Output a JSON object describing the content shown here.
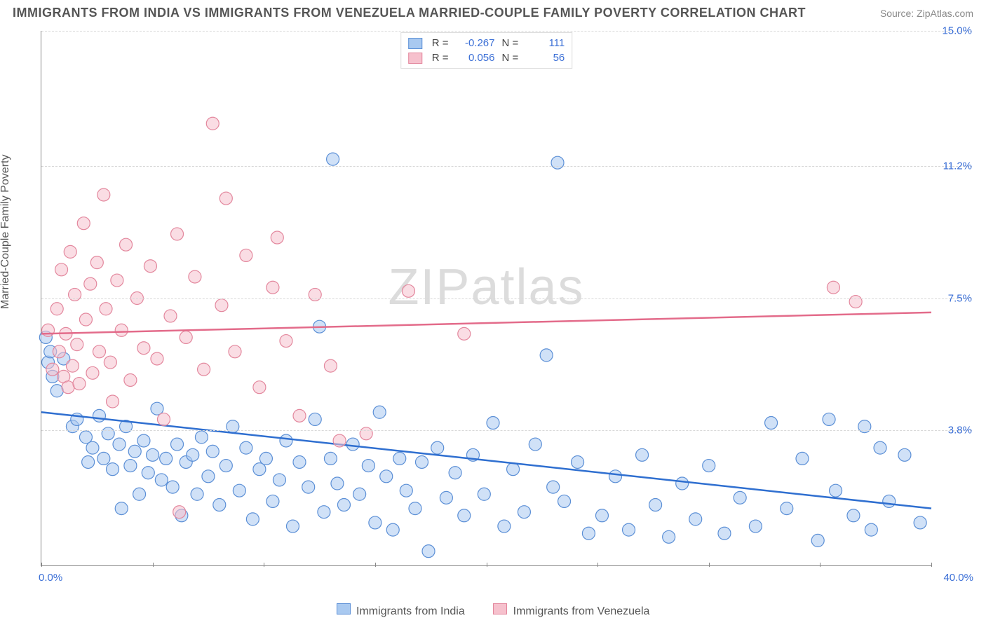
{
  "header": {
    "title": "IMMIGRANTS FROM INDIA VS IMMIGRANTS FROM VENEZUELA MARRIED-COUPLE FAMILY POVERTY CORRELATION CHART",
    "source": "Source: ZipAtlas.com"
  },
  "watermark": {
    "left": "ZIP",
    "right": "atlas"
  },
  "chart": {
    "type": "scatter",
    "background_color": "#ffffff",
    "grid_color": "#d8d8d8",
    "axis_color": "#888888",
    "ylabel": "Married-Couple Family Poverty",
    "ylabel_fontsize": 16,
    "x": {
      "min": 0.0,
      "max": 40.0,
      "ticks_at": [
        0,
        5,
        10,
        15,
        20,
        25,
        30,
        35,
        40
      ],
      "left_label": "0.0%",
      "right_label": "40.0%"
    },
    "y": {
      "min": 0.0,
      "max": 15.0,
      "gridlines": [
        {
          "value": 3.8,
          "label": "3.8%"
        },
        {
          "value": 7.5,
          "label": "7.5%"
        },
        {
          "value": 11.2,
          "label": "11.2%"
        },
        {
          "value": 15.0,
          "label": "15.0%"
        }
      ]
    },
    "series": [
      {
        "key": "india",
        "label": "Immigrants from India",
        "fill_color": "#a9c9f0",
        "stroke_color": "#5b8fd6",
        "line_color": "#2f6fd0",
        "marker_radius": 9,
        "fill_opacity": 0.55,
        "R": "-0.267",
        "N": "111",
        "trend": {
          "y_at_xmin": 4.3,
          "y_at_xmax": 1.6
        },
        "points": [
          [
            0.2,
            6.4
          ],
          [
            0.3,
            5.7
          ],
          [
            0.4,
            6.0
          ],
          [
            0.5,
            5.3
          ],
          [
            0.7,
            4.9
          ],
          [
            1.0,
            5.8
          ],
          [
            1.4,
            3.9
          ],
          [
            1.6,
            4.1
          ],
          [
            2.0,
            3.6
          ],
          [
            2.1,
            2.9
          ],
          [
            2.3,
            3.3
          ],
          [
            2.6,
            4.2
          ],
          [
            2.8,
            3.0
          ],
          [
            3.0,
            3.7
          ],
          [
            3.2,
            2.7
          ],
          [
            3.5,
            3.4
          ],
          [
            3.6,
            1.6
          ],
          [
            3.8,
            3.9
          ],
          [
            4.0,
            2.8
          ],
          [
            4.2,
            3.2
          ],
          [
            4.4,
            2.0
          ],
          [
            4.6,
            3.5
          ],
          [
            4.8,
            2.6
          ],
          [
            5.0,
            3.1
          ],
          [
            5.2,
            4.4
          ],
          [
            5.4,
            2.4
          ],
          [
            5.6,
            3.0
          ],
          [
            5.9,
            2.2
          ],
          [
            6.1,
            3.4
          ],
          [
            6.3,
            1.4
          ],
          [
            6.5,
            2.9
          ],
          [
            6.8,
            3.1
          ],
          [
            7.0,
            2.0
          ],
          [
            7.2,
            3.6
          ],
          [
            7.5,
            2.5
          ],
          [
            7.7,
            3.2
          ],
          [
            8.0,
            1.7
          ],
          [
            8.3,
            2.8
          ],
          [
            8.6,
            3.9
          ],
          [
            8.9,
            2.1
          ],
          [
            9.2,
            3.3
          ],
          [
            9.5,
            1.3
          ],
          [
            9.8,
            2.7
          ],
          [
            10.1,
            3.0
          ],
          [
            10.4,
            1.8
          ],
          [
            10.7,
            2.4
          ],
          [
            11.0,
            3.5
          ],
          [
            11.3,
            1.1
          ],
          [
            11.6,
            2.9
          ],
          [
            12.0,
            2.2
          ],
          [
            12.3,
            4.1
          ],
          [
            12.5,
            6.7
          ],
          [
            12.7,
            1.5
          ],
          [
            13.0,
            3.0
          ],
          [
            13.1,
            11.4
          ],
          [
            13.3,
            2.3
          ],
          [
            13.6,
            1.7
          ],
          [
            14.0,
            3.4
          ],
          [
            14.3,
            2.0
          ],
          [
            14.7,
            2.8
          ],
          [
            15.0,
            1.2
          ],
          [
            15.2,
            4.3
          ],
          [
            15.5,
            2.5
          ],
          [
            15.8,
            1.0
          ],
          [
            16.1,
            3.0
          ],
          [
            16.4,
            2.1
          ],
          [
            16.8,
            1.6
          ],
          [
            17.1,
            2.9
          ],
          [
            17.4,
            0.4
          ],
          [
            17.8,
            3.3
          ],
          [
            18.2,
            1.9
          ],
          [
            18.6,
            2.6
          ],
          [
            19.0,
            1.4
          ],
          [
            19.4,
            3.1
          ],
          [
            19.9,
            2.0
          ],
          [
            20.3,
            4.0
          ],
          [
            20.8,
            1.1
          ],
          [
            21.2,
            2.7
          ],
          [
            21.7,
            1.5
          ],
          [
            22.2,
            3.4
          ],
          [
            22.7,
            5.9
          ],
          [
            23.0,
            2.2
          ],
          [
            23.2,
            11.3
          ],
          [
            23.5,
            1.8
          ],
          [
            24.1,
            2.9
          ],
          [
            24.6,
            0.9
          ],
          [
            25.2,
            1.4
          ],
          [
            25.8,
            2.5
          ],
          [
            26.4,
            1.0
          ],
          [
            27.0,
            3.1
          ],
          [
            27.6,
            1.7
          ],
          [
            28.2,
            0.8
          ],
          [
            28.8,
            2.3
          ],
          [
            29.4,
            1.3
          ],
          [
            30.0,
            2.8
          ],
          [
            30.7,
            0.9
          ],
          [
            31.4,
            1.9
          ],
          [
            32.1,
            1.1
          ],
          [
            32.8,
            4.0
          ],
          [
            33.5,
            1.6
          ],
          [
            34.2,
            3.0
          ],
          [
            34.9,
            0.7
          ],
          [
            35.4,
            4.1
          ],
          [
            35.7,
            2.1
          ],
          [
            36.5,
            1.4
          ],
          [
            37.0,
            3.9
          ],
          [
            37.3,
            1.0
          ],
          [
            37.7,
            3.3
          ],
          [
            38.1,
            1.8
          ],
          [
            38.8,
            3.1
          ],
          [
            39.5,
            1.2
          ]
        ]
      },
      {
        "key": "venezuela",
        "label": "Immigrants from Venezuela",
        "fill_color": "#f6c1cd",
        "stroke_color": "#e3879d",
        "line_color": "#e36b8a",
        "marker_radius": 9,
        "fill_opacity": 0.55,
        "R": "0.056",
        "N": "56",
        "trend": {
          "y_at_xmin": 6.5,
          "y_at_xmax": 7.1
        },
        "points": [
          [
            0.3,
            6.6
          ],
          [
            0.5,
            5.5
          ],
          [
            0.7,
            7.2
          ],
          [
            0.8,
            6.0
          ],
          [
            0.9,
            8.3
          ],
          [
            1.0,
            5.3
          ],
          [
            1.1,
            6.5
          ],
          [
            1.2,
            5.0
          ],
          [
            1.3,
            8.8
          ],
          [
            1.4,
            5.6
          ],
          [
            1.5,
            7.6
          ],
          [
            1.6,
            6.2
          ],
          [
            1.7,
            5.1
          ],
          [
            1.9,
            9.6
          ],
          [
            2.0,
            6.9
          ],
          [
            2.2,
            7.9
          ],
          [
            2.3,
            5.4
          ],
          [
            2.5,
            8.5
          ],
          [
            2.6,
            6.0
          ],
          [
            2.8,
            10.4
          ],
          [
            2.9,
            7.2
          ],
          [
            3.1,
            5.7
          ],
          [
            3.2,
            4.6
          ],
          [
            3.4,
            8.0
          ],
          [
            3.6,
            6.6
          ],
          [
            3.8,
            9.0
          ],
          [
            4.0,
            5.2
          ],
          [
            4.3,
            7.5
          ],
          [
            4.6,
            6.1
          ],
          [
            4.9,
            8.4
          ],
          [
            5.2,
            5.8
          ],
          [
            5.5,
            4.1
          ],
          [
            5.8,
            7.0
          ],
          [
            6.1,
            9.3
          ],
          [
            6.2,
            1.5
          ],
          [
            6.5,
            6.4
          ],
          [
            6.9,
            8.1
          ],
          [
            7.3,
            5.5
          ],
          [
            7.7,
            12.4
          ],
          [
            8.1,
            7.3
          ],
          [
            8.3,
            10.3
          ],
          [
            8.7,
            6.0
          ],
          [
            9.2,
            8.7
          ],
          [
            9.8,
            5.0
          ],
          [
            10.4,
            7.8
          ],
          [
            10.6,
            9.2
          ],
          [
            11.0,
            6.3
          ],
          [
            11.6,
            4.2
          ],
          [
            12.3,
            7.6
          ],
          [
            13.0,
            5.6
          ],
          [
            13.4,
            3.5
          ],
          [
            14.6,
            3.7
          ],
          [
            16.5,
            7.7
          ],
          [
            19.0,
            6.5
          ],
          [
            35.6,
            7.8
          ],
          [
            36.6,
            7.4
          ]
        ]
      }
    ],
    "legend_top_labels": {
      "R": "R =",
      "N": "N ="
    },
    "legend_bottom": [
      {
        "series": "india"
      },
      {
        "series": "venezuela"
      }
    ]
  }
}
